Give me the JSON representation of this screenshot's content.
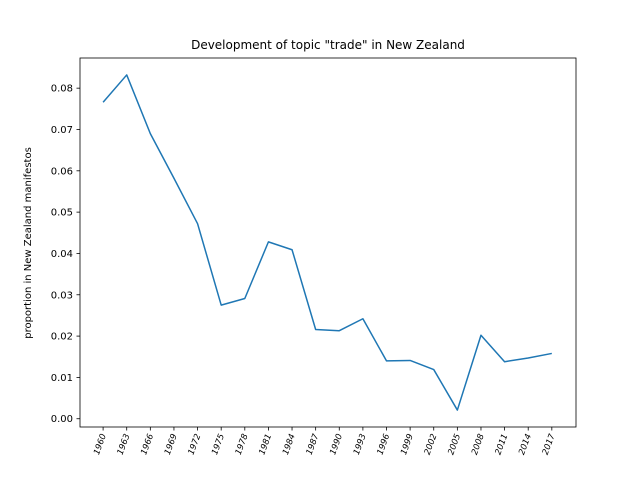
{
  "chart_data": {
    "type": "line",
    "title": "Development of topic \"trade\" in New Zealand",
    "xlabel": "",
    "ylabel": "proportion in New Zealand manifestos",
    "categories": [
      "1960",
      "1963",
      "1966",
      "1969",
      "1972",
      "1975",
      "1978",
      "1981",
      "1984",
      "1987",
      "1990",
      "1993",
      "1996",
      "1999",
      "2002",
      "2005",
      "2008",
      "2011",
      "2014",
      "2017"
    ],
    "series": [
      {
        "values": [
          0.0766,
          0.0832,
          0.069,
          0.0582,
          0.0472,
          0.0275,
          0.0291,
          0.0428,
          0.0409,
          0.0216,
          0.0213,
          0.0242,
          0.014,
          0.0141,
          0.0119,
          0.0021,
          0.0202,
          0.0138,
          0.0147,
          0.0158
        ],
        "color": "#1f77b4"
      }
    ],
    "ylim": [
      -0.002,
      0.0873
    ],
    "yticks": [
      0.0,
      0.01,
      0.02,
      0.03,
      0.04,
      0.05,
      0.06,
      0.07,
      0.08
    ],
    "ytick_labels": [
      "0.00",
      "0.01",
      "0.02",
      "0.03",
      "0.04",
      "0.05",
      "0.06",
      "0.07",
      "0.08"
    ],
    "grid": false,
    "legend": "none"
  }
}
